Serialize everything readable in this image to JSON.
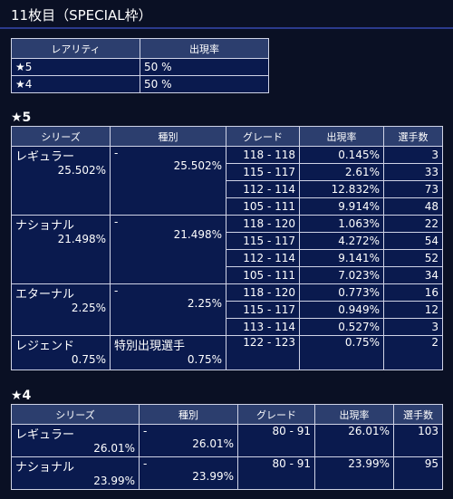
{
  "page_title": "11枚目（SPECIAL枠）",
  "rarity_table": {
    "headers": [
      "レアリティ",
      "出現率"
    ],
    "rows": [
      {
        "rarity": "★5",
        "rate": "50 %"
      },
      {
        "rarity": "★4",
        "rate": "50 %"
      }
    ]
  },
  "star5": {
    "title": "★5",
    "headers": [
      "シリーズ",
      "種別",
      "グレード",
      "出現率",
      "選手数"
    ],
    "groups": [
      {
        "series": "レギュラー",
        "series_rate": "25.502%",
        "type": "-",
        "type_rate": "25.502%",
        "rows": [
          {
            "grade": "118 - 118",
            "rate": "0.145%",
            "count": "3"
          },
          {
            "grade": "115 - 117",
            "rate": "2.61%",
            "count": "33"
          },
          {
            "grade": "112 - 114",
            "rate": "12.832%",
            "count": "73"
          },
          {
            "grade": "105 - 111",
            "rate": "9.914%",
            "count": "48"
          }
        ]
      },
      {
        "series": "ナショナル",
        "series_rate": "21.498%",
        "type": "-",
        "type_rate": "21.498%",
        "rows": [
          {
            "grade": "118 - 120",
            "rate": "1.063%",
            "count": "22"
          },
          {
            "grade": "115 - 117",
            "rate": "4.272%",
            "count": "54"
          },
          {
            "grade": "112 - 114",
            "rate": "9.141%",
            "count": "52"
          },
          {
            "grade": "105 - 111",
            "rate": "7.023%",
            "count": "34"
          }
        ]
      },
      {
        "series": "エターナル",
        "series_rate": "2.25%",
        "type": "-",
        "type_rate": "2.25%",
        "rows": [
          {
            "grade": "118 - 120",
            "rate": "0.773%",
            "count": "16"
          },
          {
            "grade": "115 - 117",
            "rate": "0.949%",
            "count": "12"
          },
          {
            "grade": "113 - 114",
            "rate": "0.527%",
            "count": "3"
          }
        ]
      },
      {
        "series": "レジェンド",
        "series_rate": "0.75%",
        "type": "特別出現選手",
        "type_rate": "0.75%",
        "rows": [
          {
            "grade": "122 - 123",
            "rate": "0.75%",
            "count": "2"
          }
        ]
      }
    ]
  },
  "star4": {
    "title": "★4",
    "headers": [
      "シリーズ",
      "種別",
      "グレード",
      "出現率",
      "選手数"
    ],
    "groups": [
      {
        "series": "レギュラー",
        "series_rate": "26.01%",
        "type": "-",
        "type_rate": "26.01%",
        "rows": [
          {
            "grade": "80 - 91",
            "rate": "26.01%",
            "count": "103"
          }
        ]
      },
      {
        "series": "ナショナル",
        "series_rate": "23.99%",
        "type": "-",
        "type_rate": "23.99%",
        "rows": [
          {
            "grade": "80 - 91",
            "rate": "23.99%",
            "count": "95"
          }
        ]
      }
    ]
  }
}
